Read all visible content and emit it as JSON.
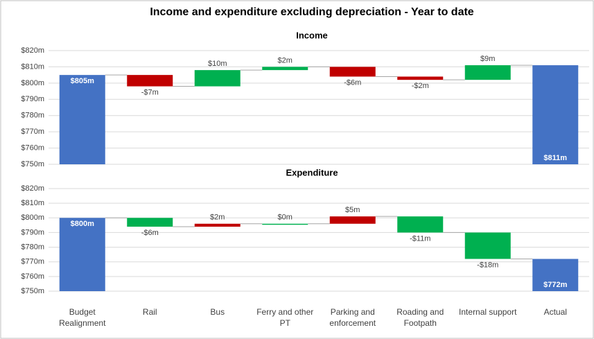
{
  "title": "Income and expenditure excluding depreciation - Year to date",
  "chart_data": [
    {
      "type": "waterfall",
      "title": "Income",
      "measure": [
        "absolute",
        "relative",
        "relative",
        "relative",
        "relative",
        "relative",
        "relative",
        "absolute"
      ],
      "values": [
        805,
        -7,
        10,
        2,
        -6,
        -2,
        9,
        811
      ],
      "value_labels": [
        "$805m",
        "-$7m",
        "$10m",
        "$2m",
        "-$6m",
        "-$2m",
        "$9m",
        "$811m"
      ],
      "increase_color": "#00b050",
      "decrease_color": "#c00000",
      "total_color": "#4472c4",
      "ylim": [
        750,
        820
      ],
      "yticks": [
        {
          "value": 750,
          "label": "$750m"
        },
        {
          "value": 760,
          "label": "$760m"
        },
        {
          "value": 770,
          "label": "$770m"
        },
        {
          "value": 780,
          "label": "$780m"
        },
        {
          "value": 790,
          "label": "$790m"
        },
        {
          "value": 800,
          "label": "$800m"
        },
        {
          "value": 810,
          "label": "$810m"
        },
        {
          "value": 820,
          "label": "$820m"
        }
      ],
      "grid": true
    },
    {
      "type": "waterfall",
      "title": "Expenditure",
      "categories": [
        "Budget Realignment",
        "Rail",
        "Bus",
        "Ferry and other PT",
        "Parking and enforcement",
        "Roading and Footpath",
        "Internal support",
        "Actual"
      ],
      "measure": [
        "absolute",
        "relative",
        "relative",
        "relative",
        "relative",
        "relative",
        "relative",
        "absolute"
      ],
      "values": [
        800,
        -6,
        2,
        0,
        5,
        -11,
        -18,
        772
      ],
      "value_labels": [
        "$800m",
        "-$6m",
        "$2m",
        "$0m",
        "$5m",
        "-$11m",
        "-$18m",
        "$772m"
      ],
      "increase_color": "#c00000",
      "decrease_color": "#00b050",
      "total_color": "#4472c4",
      "ylim": [
        750,
        820
      ],
      "yticks": [
        {
          "value": 750,
          "label": "$750m"
        },
        {
          "value": 760,
          "label": "$760m"
        },
        {
          "value": 770,
          "label": "$770m"
        },
        {
          "value": 780,
          "label": "$780m"
        },
        {
          "value": 790,
          "label": "$790m"
        },
        {
          "value": 800,
          "label": "$800m"
        },
        {
          "value": 810,
          "label": "$810m"
        },
        {
          "value": 820,
          "label": "$820m"
        }
      ],
      "grid": true
    }
  ]
}
